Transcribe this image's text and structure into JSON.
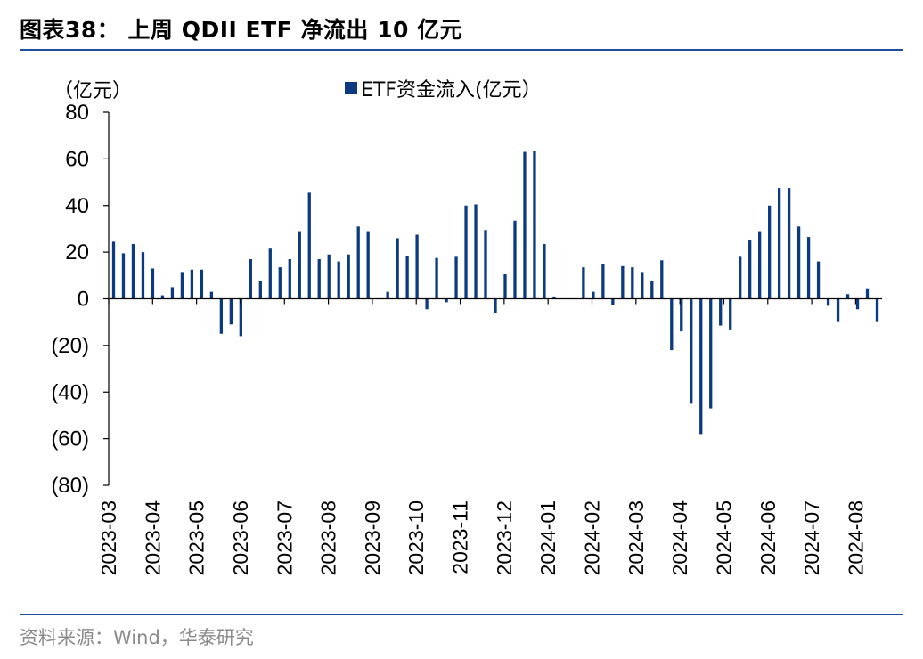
{
  "header": {
    "title": "图表38： 上周 QDII ETF 净流出 10 亿元"
  },
  "footer": {
    "source": "资料来源：Wind，华泰研究"
  },
  "colors": {
    "bar": "#0b3a80",
    "rule": "#1f4e9a",
    "axis": "#000000"
  },
  "chart_data": {
    "type": "bar",
    "title": "上周 QDII ETF 净流出 10 亿元",
    "unit_label": "（亿元）",
    "legend": [
      "ETF资金流入(亿元）"
    ],
    "legend_position": "top-center",
    "ylim": [
      -80,
      80
    ],
    "yticks": [
      80,
      60,
      40,
      20,
      0,
      -20,
      -40,
      -60,
      -80
    ],
    "ytick_labels": [
      "80",
      "60",
      "40",
      "20",
      "0",
      "(20)",
      "(40)",
      "(60)",
      "(80)"
    ],
    "month_labels": [
      "2023-03",
      "2023-04",
      "2023-05",
      "2023-06",
      "2023-07",
      "2023-08",
      "2023-09",
      "2023-10",
      "2023-11",
      "2023-12",
      "2024-01",
      "2024-02",
      "2024-03",
      "2024-04",
      "2024-05",
      "2024-06",
      "2024-07",
      "2024-08"
    ],
    "series": [
      {
        "name": "ETF资金流入(亿元）",
        "values": [
          24.5,
          19.5,
          23.5,
          20,
          13,
          1.5,
          5,
          11.5,
          12.5,
          12.5,
          3,
          -15,
          -11,
          -16,
          17,
          7.5,
          21.5,
          13.5,
          17,
          29,
          45.5,
          17,
          19,
          16,
          19,
          31,
          29,
          0,
          3,
          26,
          18.5,
          27.5,
          -4.5,
          17.5,
          -1.5,
          18,
          40,
          40.5,
          29.5,
          -6,
          10.5,
          33.5,
          63,
          63.5,
          23.5,
          1,
          0,
          0,
          13.5,
          3,
          15,
          -2.5,
          14,
          13.5,
          11.5,
          7.5,
          16.5,
          -22,
          -14,
          -45,
          -58,
          -47,
          -11.5,
          -13.5,
          18,
          25,
          29,
          40,
          47.5,
          47.5,
          31,
          26.5,
          16,
          -3,
          -10,
          2,
          -4.5,
          4.5,
          -10
        ]
      }
    ]
  }
}
